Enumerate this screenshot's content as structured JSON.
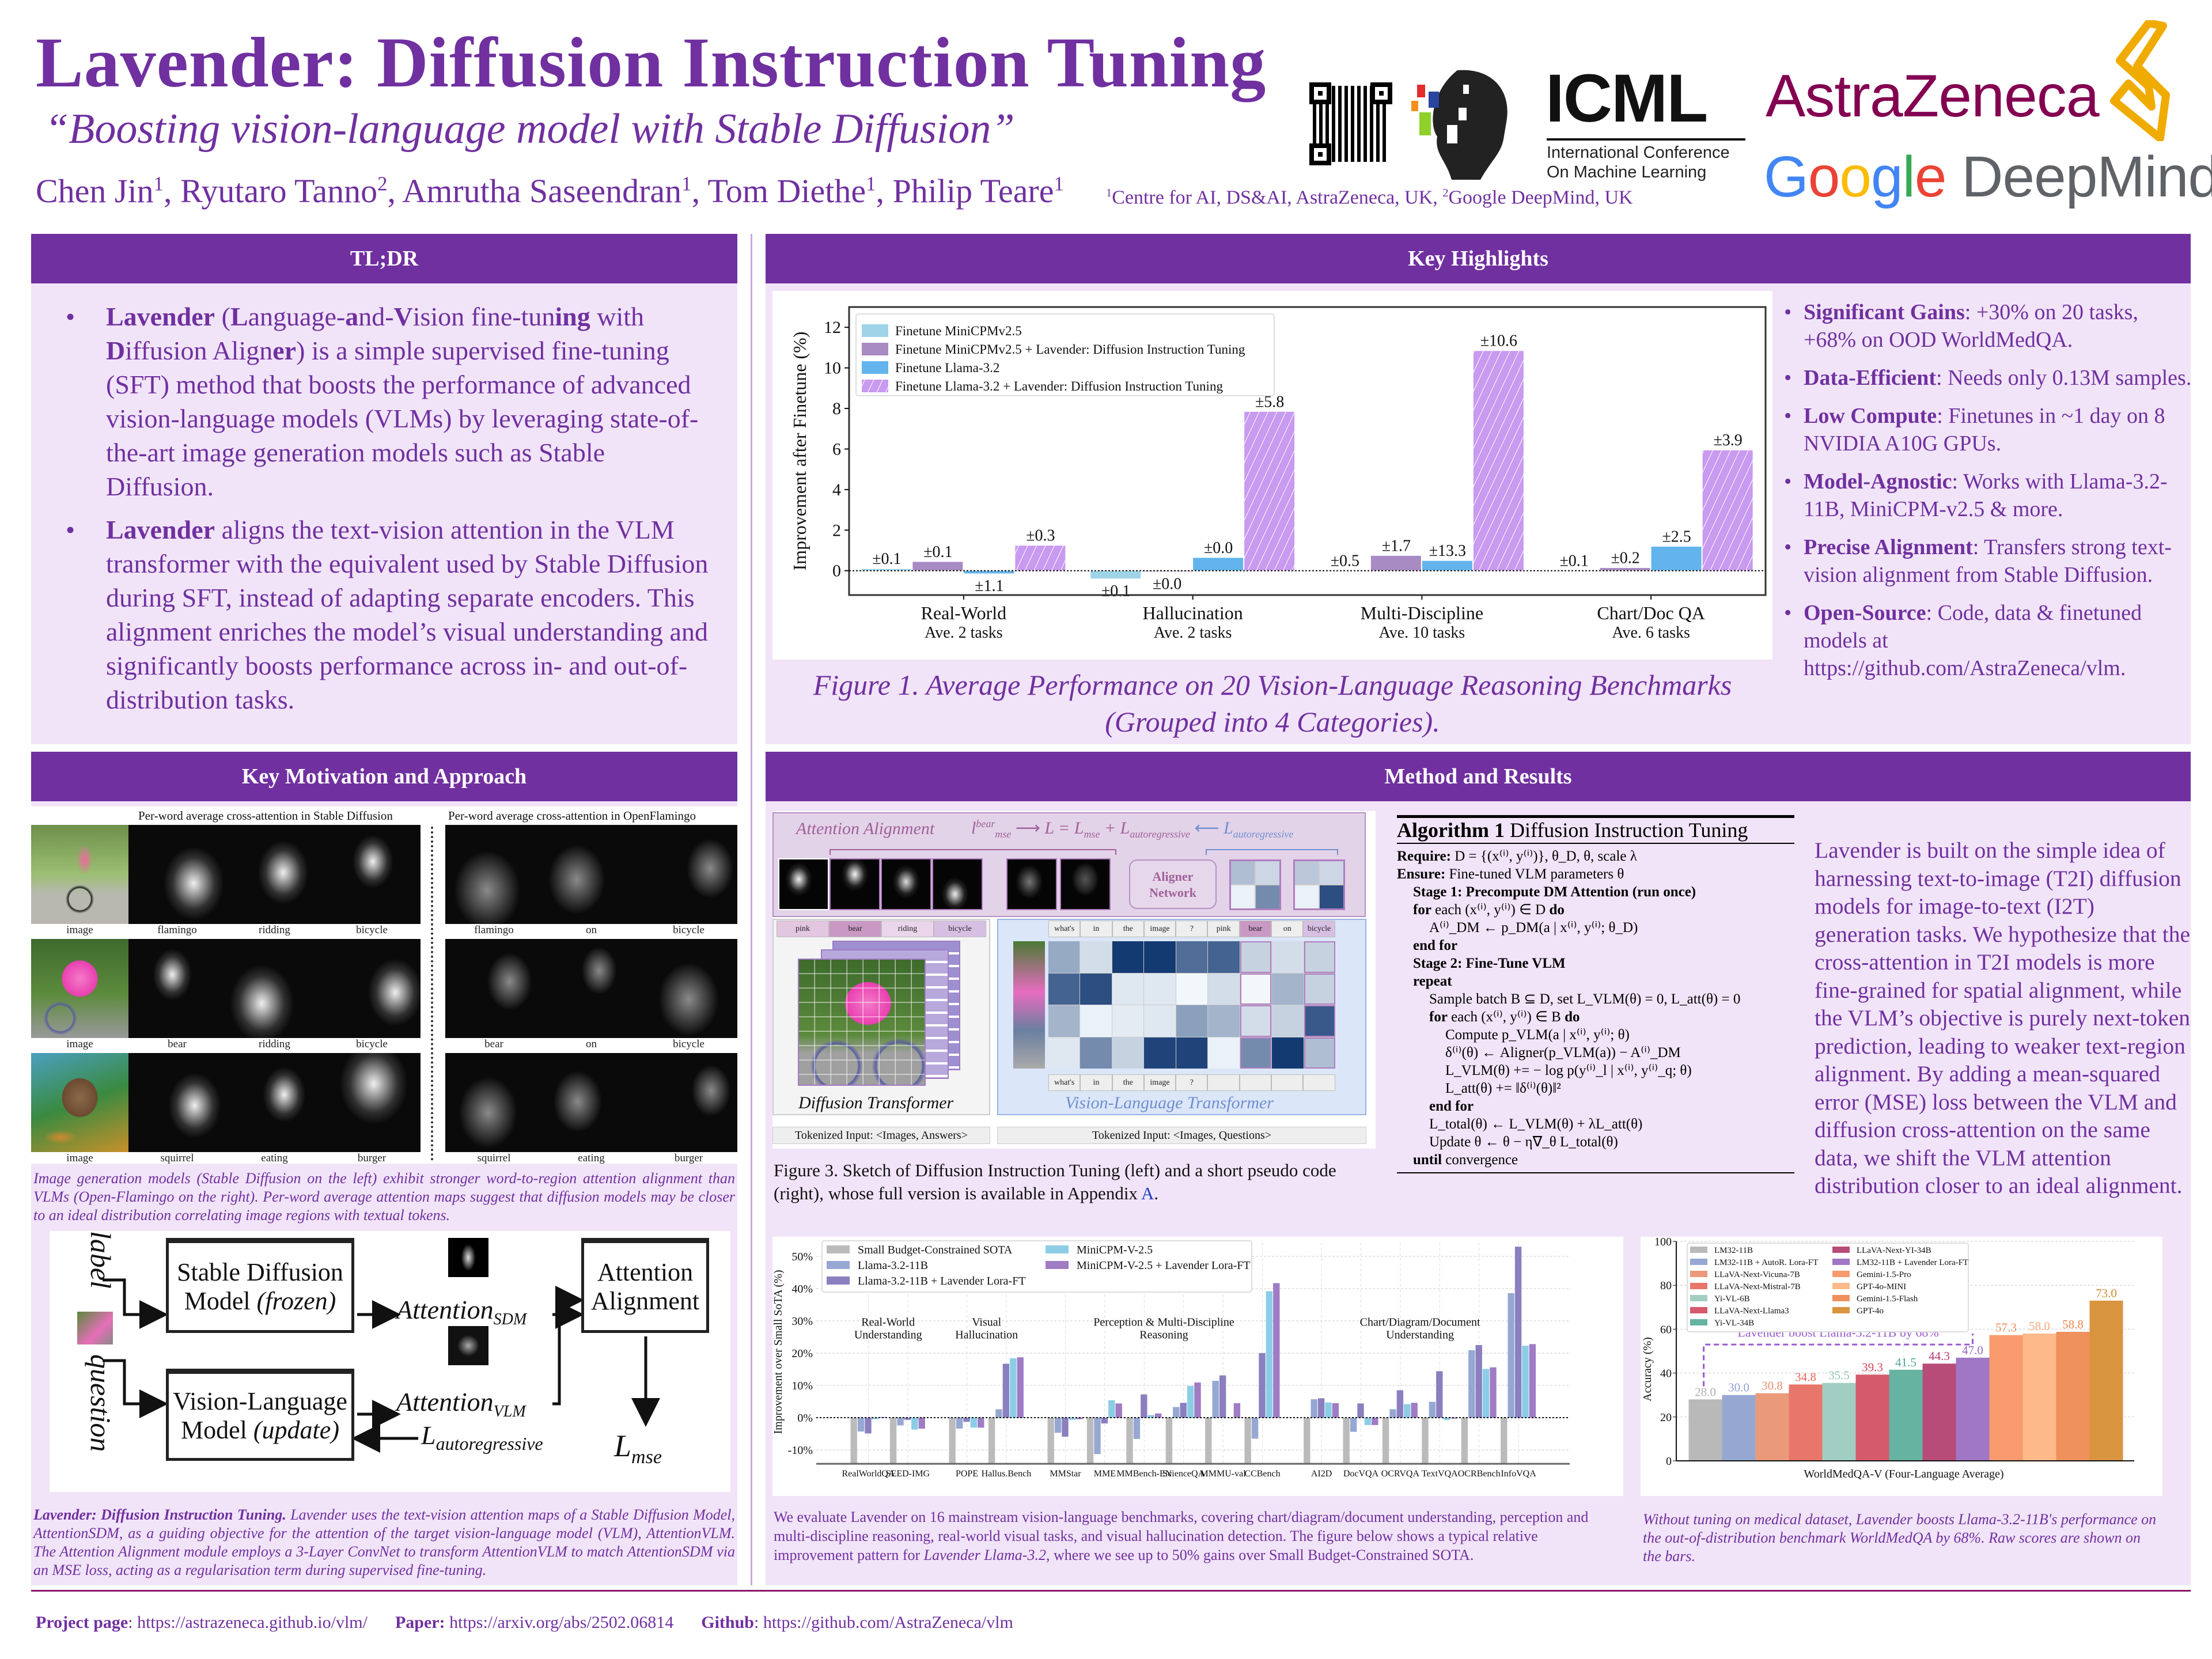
{
  "header": {
    "title": "Lavender: Diffusion Instruction Tuning",
    "subtitle": "“Boosting vision-language model with Stable Diffusion”",
    "authors": [
      {
        "name": "Chen Jin",
        "aff": "1"
      },
      {
        "name": "Ryutaro Tanno",
        "aff": "2"
      },
      {
        "name": "Amrutha Saseendran",
        "aff": "1"
      },
      {
        "name": "Tom Diethe",
        "aff": "1"
      },
      {
        "name": "Philip Teare",
        "aff": "1"
      }
    ],
    "affiliations": [
      {
        "num": "1",
        "text": "Centre for AI, DS&AI, AstraZeneca, UK, "
      },
      {
        "num": "2",
        "text": "Google DeepMind, UK"
      }
    ],
    "logos": {
      "icml": "ICML",
      "icml_sub1": "International Conference",
      "icml_sub2": "On Machine Learning",
      "astrazeneca": "AstraZeneca",
      "google": [
        "G",
        "o",
        "o",
        "g",
        "l",
        "e"
      ],
      "google_colors": [
        "#4285f4",
        "#ea4335",
        "#fbbc05",
        "#4285f4",
        "#34a853",
        "#ea4335"
      ],
      "deepmind": " DeepMind"
    }
  },
  "tldr": {
    "heading": "TL;DR",
    "bullets": [
      [
        {
          "t": "Lavender",
          "b": true
        },
        {
          "t": " ("
        },
        {
          "t": "L",
          "b": true
        },
        {
          "t": "anguage-"
        },
        {
          "t": "a",
          "b": true
        },
        {
          "t": "nd-"
        },
        {
          "t": "V",
          "b": true
        },
        {
          "t": "ision fine-tun"
        },
        {
          "t": "ing",
          "b": true
        },
        {
          "t": " with "
        },
        {
          "t": "D",
          "b": true
        },
        {
          "t": "iffusion Align"
        },
        {
          "t": "er",
          "b": true
        },
        {
          "t": ") is a simple supervised fine-tuning (SFT) method that boosts the performance of advanced vision-language models (VLMs) by leveraging state-of-the-art image generation models such as Stable Diffusion."
        }
      ],
      [
        {
          "t": "Lavender",
          "b": true
        },
        {
          "t": " aligns the text-vision attention in the VLM transformer with the equivalent used by Stable Diffusion during SFT, instead of adapting separate encoders. This alignment enriches the model’s visual understanding and significantly boosts performance across in- and out-of-distribution tasks."
        }
      ]
    ]
  },
  "highlights": {
    "heading": "Key Highlights",
    "items": [
      {
        "title": "Significant Gains",
        "text": ": +30% on 20 tasks, +68% on OOD WorldMedQA."
      },
      {
        "title": "Data-Efficient",
        "text": ": Needs only 0.13M samples."
      },
      {
        "title": "Low Compute",
        "text": ": Finetunes in ~1 day on 8 NVIDIA A10G GPUs."
      },
      {
        "title": "Model-Agnostic",
        "text": ": Works with Llama-3.2-11B, MiniCPM-v2.5 & more."
      },
      {
        "title": "Precise Alignment",
        "text": ": Transfers strong text-vision alignment from Stable Diffusion."
      },
      {
        "title": "Open-Source",
        "text": ": Code, data & finetuned models at https://github.com/AstraZeneca/vlm."
      }
    ],
    "figure_caption": "Figure 1. Average Performance on 20 Vision-Language Reasoning Benchmarks (Grouped into 4 Categories)."
  },
  "motivation": {
    "heading": "Key Motivation and Approach",
    "left_title": "Per-word average cross-attention in Stable Diffusion",
    "right_title": "Per-word average cross-attention in OpenFlamingo",
    "rows": [
      {
        "left": [
          "image",
          "flamingo",
          "ridding",
          "bicycle"
        ],
        "right": [
          "flamingo",
          "on",
          "bicycle"
        ]
      },
      {
        "left": [
          "image",
          "bear",
          "ridding",
          "bicycle"
        ],
        "right": [
          "bear",
          "on",
          "bicycle"
        ]
      },
      {
        "left": [
          "image",
          "squirrel",
          "eating",
          "burger"
        ],
        "right": [
          "squirrel",
          "eating",
          "burger"
        ]
      }
    ],
    "caption": "Image generation models (Stable Diffusion on the left) exhibit stronger word-to-region attention alignment than VLMs (Open-Flamingo on the right). Per-word average attention maps suggest that diffusion models may be closer to an ideal distribution correlating image regions with textual tokens.",
    "diagram": {
      "label": "label",
      "question": "question",
      "sd_box": [
        "Stable Diffusion",
        "Model ",
        "(frozen)"
      ],
      "vlm_box": [
        "Vision-Language",
        "Model ",
        "(update)"
      ],
      "align_box": [
        "Attention",
        "Alignment"
      ],
      "att_sdm": "Attention",
      "att_sdm_sub": "SDM",
      "att_vlm": "Attention",
      "att_vlm_sub": "VLM",
      "l_auto": "L",
      "l_auto_sub": "autoregressive",
      "l_mse": "L",
      "l_mse_sub": "mse"
    },
    "caption2_bold": "Lavender: Diffusion Instruction Tuning.",
    "caption2": " Lavender uses the text-vision attention maps of a Stable Diffusion Model, AttentionSDM, as a guiding objective for the attention of the target vision-language model (VLM), AttentionVLM. The Attention Alignment module employs a 3-Layer ConvNet to transform AttentionVLM to match AttentionSDM via an MSE loss, acting as a regularisation term during supervised fine-tuning."
  },
  "method": {
    "heading": "Method and Results",
    "figure": {
      "attention_alignment": "Attention Alignment",
      "formula_left": "l",
      "formula_left_sup": "bear",
      "formula_left_sub": "mse",
      "formula_mid": "L = L",
      "formula_mid_sub1": "mse",
      "formula_plus": " + L",
      "formula_mid_sub2": "autoregressive",
      "formula_right": "L",
      "formula_right_sub": "autoregressive",
      "aligner": [
        "Aligner",
        "Network"
      ],
      "dt_tokens": [
        "pink",
        "bear",
        "riding",
        "bicycle"
      ],
      "vlt_tokens": [
        "what's",
        "in",
        "the",
        "image",
        "?",
        "pink",
        "bear",
        "on",
        "bicycle"
      ],
      "vlt_tokens_bottom": [
        "what's",
        "in",
        "the",
        "image",
        "?",
        "",
        "",
        "",
        ""
      ],
      "diffusion_transformer": "Diffusion Transformer",
      "vl_transformer": "Vision-Language Transformer",
      "input_answers": "Tokenized Input: <Images, Answers>",
      "input_questions": "Tokenized Input: <Images, Questions>",
      "vlm_attention_grid": [
        [
          0.4,
          0.15,
          0.95,
          0.95,
          0.7,
          0.75,
          0.2,
          0.15,
          0.2
        ],
        [
          0.75,
          0.85,
          0.1,
          0.1,
          0.02,
          0.15,
          0.02,
          0.35,
          0.2
        ],
        [
          0.35,
          0.05,
          0.08,
          0.1,
          0.45,
          0.35,
          0.15,
          0.2,
          0.8
        ],
        [
          0.1,
          0.55,
          0.2,
          0.9,
          0.9,
          0.05,
          0.55,
          0.95,
          0.3
        ]
      ],
      "aligned_grids": [
        [
          0.3,
          0.18,
          0.05,
          0.55
        ],
        [
          0.25,
          0.18,
          0.05,
          0.85
        ]
      ]
    },
    "figure3_label": "Figure 3",
    "figure3_caption": ". Sketch of Diffusion Instruction Tuning (left) and a short pseudo code (right), whose full version is available in Appendix ",
    "figure3_appendix": "A",
    "figure3_end": ".",
    "algorithm": {
      "label": "Algorithm 1",
      "name": " Diffusion Instruction Tuning",
      "lines": [
        {
          "i": 0,
          "k": "Require:",
          "t": "  D = {(x⁽ⁱ⁾, y⁽ⁱ⁾)}, θ_D, θ, scale λ"
        },
        {
          "i": 0,
          "k": "Ensure:",
          "t": "  Fine-tuned VLM parameters θ"
        },
        {
          "i": 1,
          "k": "Stage 1: Precompute DM Attention (run once)",
          "t": ""
        },
        {
          "i": 1,
          "k": "for",
          "t": " each (x⁽ⁱ⁾, y⁽ⁱ⁾) ∈ D ",
          "k2": "do"
        },
        {
          "i": 2,
          "k": "",
          "t": "A⁽ⁱ⁾_DM ← p_DM(a | x⁽ⁱ⁾, y⁽ⁱ⁾; θ_D)"
        },
        {
          "i": 1,
          "k": "end for",
          "t": ""
        },
        {
          "i": 1,
          "k": "Stage 2: Fine-Tune VLM",
          "t": ""
        },
        {
          "i": 1,
          "k": "repeat",
          "t": ""
        },
        {
          "i": 2,
          "k": "",
          "t": "Sample batch B ⊆ D, set L_VLM(θ) = 0, L_att(θ) = 0"
        },
        {
          "i": 2,
          "k": "for",
          "t": " each (x⁽ⁱ⁾, y⁽ⁱ⁾) ∈ B ",
          "k2": "do"
        },
        {
          "i": 3,
          "k": "",
          "t": "Compute p_VLM(a | x⁽ⁱ⁾, y⁽ⁱ⁾; θ)"
        },
        {
          "i": 3,
          "k": "",
          "t": "δ⁽ⁱ⁾(θ) ← Aligner(p_VLM(a)) − A⁽ⁱ⁾_DM"
        },
        {
          "i": 3,
          "k": "",
          "t": "L_VLM(θ) += − log p(y⁽ⁱ⁾_l | x⁽ⁱ⁾, y⁽ⁱ⁾_q; θ)"
        },
        {
          "i": 3,
          "k": "",
          "t": "L_att(θ) += ‖δ⁽ⁱ⁾(θ)‖²"
        },
        {
          "i": 2,
          "k": "end for",
          "t": ""
        },
        {
          "i": 2,
          "k": "",
          "t": "L_total(θ) ← L_VLM(θ) + λL_att(θ)"
        },
        {
          "i": 2,
          "k": "",
          "t": "Update θ ← θ − η∇_θ L_total(θ)"
        },
        {
          "i": 1,
          "k": "until",
          "t": " convergence"
        }
      ]
    },
    "description": "Lavender is built on the simple idea of harnessing text-to-image (T2I) diffusion models for image-to-text (I2T) generation tasks. We hypothesize that the cross-attention in T2I models is more fine-grained for spatial alignment, while the VLM’s objective is purely next-token prediction, leading to weaker text-region alignment. By adding a mean-squared error (MSE) loss between the VLM and diffusion cross-attention on the same data, we shift the VLM attention distribution closer to an ideal alignment.",
    "bench_caption_a": "We evaluate Lavender on 16 mainstream vision-language benchmarks, covering chart/diagram/document understanding, perception and multi-discipline reasoning, real-world visual tasks, and visual hallucination detection. The figure below shows a typical relative improvement pattern for ",
    "bench_caption_em": "Lavender Llama-3.2",
    "bench_caption_b": ", where we see up to 50% gains over Small Budget-Constrained SOTA.",
    "medqa_caption": "Without tuning on medical dataset, Lavender boosts Llama-3.2-11B's performance on the out-of-distribution benchmark WorldMedQA by 68%. Raw scores are shown on the bars."
  },
  "footer": [
    {
      "label": "Project page",
      "sep": ": ",
      "url": "https://astrazeneca.github.io/vlm/"
    },
    {
      "label": "Paper:",
      "sep": " ",
      "url": "https://arxiv.org/abs/2502.06814"
    },
    {
      "label": "Github",
      "sep": ": ",
      "url": "https://github.com/AstraZeneca/vlm"
    }
  ],
  "chart_data": [
    {
      "type": "bar",
      "id": "fig1",
      "ylabel": "Improvement after Finetune (%)",
      "ylim": [
        -1.2,
        13
      ],
      "yticks": [
        0,
        2,
        4,
        6,
        8,
        10,
        12
      ],
      "categories": [
        "Real-World",
        "Hallucination",
        "Multi-Discipline",
        "Chart/Doc QA"
      ],
      "subcategories": [
        "Ave. 2 tasks",
        "Ave. 2 tasks",
        "Ave. 10 tasks",
        "Ave. 6 tasks"
      ],
      "legend_position": "top-left",
      "series": [
        {
          "name": "Finetune MiniCPMv2.5",
          "color": "#9fd4e8",
          "hatch": false,
          "values": [
            0.1,
            -0.4,
            0.0,
            0.0
          ],
          "errors": [
            "±0.1",
            "±0.1",
            "±0.5",
            "±0.1"
          ]
        },
        {
          "name": "Finetune MiniCPMv2.5  + Lavender: Diffusion Instruction Tuning",
          "color": "#a98bc4",
          "hatch": false,
          "values": [
            0.45,
            -0.05,
            0.75,
            0.15
          ],
          "errors": [
            "±0.1",
            "±0.0",
            "±1.7",
            "±0.2"
          ]
        },
        {
          "name": "Finetune Llama-3.2",
          "color": "#63b4ec",
          "hatch": false,
          "values": [
            -0.15,
            0.65,
            0.5,
            1.2
          ],
          "errors": [
            "±1.1",
            "±0.0",
            "±13.3",
            "±2.5"
          ]
        },
        {
          "name": "Finetune Llama-3.2  + Lavender: Diffusion Instruction Tuning",
          "color": "#c89af0",
          "hatch": true,
          "values": [
            1.25,
            7.85,
            10.85,
            5.95
          ],
          "errors": [
            "±0.3",
            "±5.8",
            "±10.6",
            "±3.9"
          ]
        }
      ]
    },
    {
      "type": "bar",
      "id": "bench",
      "ylabel": "Improvement over Small SoTA (%)",
      "ylim": [
        -14.3,
        56
      ],
      "yticks": [
        -10,
        0,
        10,
        20,
        30,
        40,
        50
      ],
      "ytick_labels": [
        "-10%",
        "0%",
        "10%",
        "20%",
        "30%",
        "40%",
        "50%"
      ],
      "legend_position": "top-left",
      "groups": [
        {
          "name": [
            "Real-World",
            "Understanding"
          ],
          "benchmarks": [
            "RealWorldQA",
            "SEED-IMG"
          ]
        },
        {
          "name": [
            "Visual",
            "Hallucination"
          ],
          "benchmarks": [
            "POPE",
            "Hallus.Bench"
          ]
        },
        {
          "name": [
            "Perception & Multi-Discipline",
            "Reasoning"
          ],
          "benchmarks": [
            "MMStar",
            "MME",
            "MMBench-EN",
            "ScienceQA",
            "MMMU-val",
            "CCBench"
          ]
        },
        {
          "name": [
            "Chart/Diagram/Document",
            "Understanding"
          ],
          "benchmarks": [
            "AI2D",
            "DocVQA",
            "OCRVQA",
            "TextVQA",
            "OCRBench",
            "InfoVQA"
          ]
        }
      ],
      "series": [
        {
          "name": "Small Budget-Constrained SOTA",
          "color": "#bbbbbb",
          "values": [
            0,
            0,
            0,
            0,
            0,
            0,
            0,
            0,
            0,
            0,
            0,
            0,
            0,
            0,
            0,
            0
          ]
        },
        {
          "name": "Llama-3.2-11B",
          "color": "#96a8d2",
          "values": [
            -4.3,
            -2.4,
            -3.4,
            2.6,
            -4.7,
            -11.3,
            -6.6,
            3.3,
            11.4,
            -6.5,
            5.7,
            -4.4,
            2.6,
            4.9,
            20.9,
            38.6
          ]
        },
        {
          "name": "Llama-3.2-11B + Lavender Lora-FT",
          "color": "#8b7fc0",
          "values": [
            -4.9,
            -0.7,
            -1.3,
            16.7,
            -5.9,
            -1.8,
            7.2,
            4.6,
            13.1,
            20.0,
            6.0,
            4.4,
            8.5,
            14.4,
            22.5,
            53.0
          ]
        },
        {
          "name": "MiniCPM-V-2.5",
          "color": "#8ccde6",
          "values": [
            -0.5,
            -3.7,
            -3.1,
            18.4,
            -0.7,
            5.4,
            0.8,
            9.8,
            0.0,
            39.2,
            4.7,
            -2.3,
            4.2,
            -0.7,
            15.1,
            22.3
          ]
        },
        {
          "name": "MiniCPM-V-2.5 + Lavender Lora-FT",
          "color": "#a07cc4",
          "values": [
            0.2,
            -3.4,
            -3.1,
            18.7,
            -0.5,
            4.4,
            1.3,
            10.9,
            4.5,
            41.7,
            4.5,
            -2.3,
            4.6,
            -0.3,
            15.6,
            22.8
          ]
        }
      ]
    },
    {
      "type": "bar",
      "id": "medqa",
      "ylabel": "Accuracy (%)",
      "xlabel": "WorldMedQA-V (Four-Language Average)",
      "ylim": [
        0,
        100
      ],
      "yticks": [
        0,
        20,
        40,
        60,
        80,
        100
      ],
      "legend_position": "top-left",
      "annotation": "Lavender boost Llama-3.2-11B by 68%",
      "bars": [
        {
          "name": "LM32-11B",
          "value": 28.0,
          "color": "#b9b9b9",
          "label_color": "#b0b0b0"
        },
        {
          "name": "LM32-11B + AutoR. Lora-FT",
          "value": 30.0,
          "color": "#96a8d2",
          "label_color": "#8c9fd0"
        },
        {
          "name": "LLaVA-Next-Vicuna-7B",
          "value": 30.8,
          "color": "#ea9a7a",
          "label_color": "#e8906e"
        },
        {
          "name": "LLaVA-Next-Mistral-7B",
          "value": 34.8,
          "color": "#e8766a",
          "label_color": "#e5665a"
        },
        {
          "name": "Yi-VL-6B",
          "value": 35.5,
          "color": "#a2cdc2",
          "label_color": "#92c4b8"
        },
        {
          "name": "LLaVA-Next-Llama3",
          "value": 39.3,
          "color": "#d45a6c",
          "label_color": "#d2475c"
        },
        {
          "name": "Yi-VL-34B",
          "value": 41.5,
          "color": "#66b3a2",
          "label_color": "#4fa894"
        },
        {
          "name": "LLaVA-Next-YI-34B",
          "value": 44.3,
          "color": "#b84c78",
          "label_color": "#b23c6c"
        },
        {
          "name": "LM32-11B + Lavender Lora-FT",
          "value": 47.0,
          "color": "#a077c4",
          "label_color": "#9466bf"
        },
        {
          "name": "Gemini-1.5-Pro",
          "value": 57.3,
          "color": "#f99a6e",
          "label_color": "#f58a5c"
        },
        {
          "name": "GPT-4o-MINI",
          "value": 58.0,
          "color": "#fdb98a",
          "label_color": "#f9aa78"
        },
        {
          "name": "Gemini-1.5-Flash",
          "value": 58.8,
          "color": "#ee915c",
          "label_color": "#e8834a"
        },
        {
          "name": "GPT-4o",
          "value": 73.0,
          "color": "#d9943f",
          "label_color": "#d08a30"
        }
      ]
    }
  ]
}
